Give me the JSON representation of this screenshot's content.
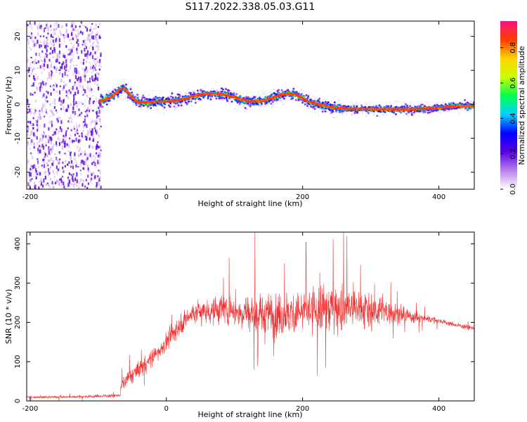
{
  "figure": {
    "title": "S117.2022.338.05.03.G11"
  },
  "chart_data": [
    {
      "type": "heatmap",
      "xlabel": "Height of straight line (km)",
      "ylabel": "Frequency (Hz)",
      "xlim": [
        -205,
        452
      ],
      "ylim": [
        -25,
        24.5
      ],
      "x_ticks": [
        -200,
        0,
        200,
        400
      ],
      "x_tick_labels": [
        "-200",
        "0",
        "200",
        "400"
      ],
      "y_ticks": [
        -20,
        -10,
        0,
        10,
        20
      ],
      "y_tick_labels": [
        "-20",
        "-10",
        "0",
        "10",
        "20"
      ],
      "grid": false,
      "noise_region_x": [
        -205,
        -97
      ],
      "ridge": {
        "x": [
          -97,
          -85,
          -75,
          -68,
          -62,
          -56,
          -50,
          -44,
          -38,
          -30,
          -20,
          -10,
          0,
          10,
          20,
          30,
          40,
          50,
          60,
          70,
          80,
          90,
          100,
          110,
          120,
          130,
          140,
          150,
          160,
          170,
          180,
          190,
          200,
          210,
          220,
          230,
          240,
          250,
          260,
          270,
          280,
          290,
          300,
          320,
          340,
          360,
          380,
          400,
          420,
          452
        ],
        "y": [
          0.8,
          1.8,
          3.0,
          4.5,
          4.8,
          3.5,
          2.0,
          1.0,
          0.6,
          0.5,
          0.7,
          0.8,
          0.9,
          1.0,
          1.3,
          1.8,
          2.4,
          2.8,
          3.0,
          3.2,
          3.0,
          2.6,
          2.0,
          1.4,
          1.0,
          0.9,
          1.0,
          1.5,
          2.2,
          2.9,
          3.2,
          2.8,
          1.8,
          0.8,
          0.2,
          -0.3,
          -0.7,
          -1.0,
          -1.2,
          -1.3,
          -1.3,
          -1.3,
          -1.4,
          -1.5,
          -1.5,
          -1.4,
          -1.3,
          -1.0,
          -0.6,
          -0.5
        ]
      },
      "colorbar": {
        "label": "Normalized spectral amplitude",
        "range": [
          0,
          0.95
        ],
        "ticks": [
          0.0,
          0.2,
          0.4,
          0.6,
          0.8
        ],
        "tick_labels": [
          "0.0",
          "0.2",
          "0.4",
          "0.6",
          "0.8"
        ],
        "colormap": [
          "#ffffff",
          "#b882ec",
          "#5a00e6",
          "#0000ff",
          "#00d2ff",
          "#00ff50",
          "#c8ff00",
          "#ffd200",
          "#ff3c00",
          "#f51482"
        ]
      }
    },
    {
      "type": "line",
      "xlabel": "Height of straight line (km)",
      "ylabel": "SNR (10 * v/v)",
      "xlim": [
        -205,
        452
      ],
      "ylim": [
        0,
        430
      ],
      "x_ticks": [
        -200,
        0,
        200,
        400
      ],
      "x_tick_labels": [
        "-200",
        "0",
        "200",
        "400"
      ],
      "y_ticks": [
        0,
        100,
        200,
        300,
        400
      ],
      "y_tick_labels": [
        "0",
        "100",
        "200",
        "300",
        "400"
      ],
      "grid": false,
      "series": [
        {
          "color": "#f03232",
          "envelope": {
            "x": [
              -205,
              -150,
              -100,
              -68,
              -66,
              -55,
              -40,
              -20,
              0,
              20,
              40,
              60,
              80,
              100,
              120,
              140,
              160,
              180,
              200,
              220,
              240,
              260,
              280,
              300,
              320,
              340,
              360,
              380,
              400,
              420,
              452
            ],
            "mean": [
              10,
              10,
              12,
              14,
              40,
              60,
              80,
              110,
              150,
              195,
              225,
              230,
              232,
              230,
              225,
              222,
              220,
              222,
              225,
              230,
              238,
              240,
              238,
              232,
              228,
              222,
              215,
              210,
              205,
              195,
              185
            ],
            "spread": [
              6,
              6,
              8,
              8,
              30,
              40,
              45,
              45,
              50,
              55,
              60,
              65,
              75,
              85,
              95,
              105,
              110,
              115,
              120,
              125,
              130,
              130,
              120,
              100,
              80,
              55,
              35,
              20,
              15,
              12,
              12
            ]
          },
          "peaks": [
            {
              "x": 130,
              "y": 430
            },
            {
              "x": 205,
              "y": 405
            },
            {
              "x": 260,
              "y": 430
            },
            {
              "x": 265,
              "y": 420
            },
            {
              "x": 92,
              "y": 365
            }
          ]
        }
      ]
    }
  ]
}
